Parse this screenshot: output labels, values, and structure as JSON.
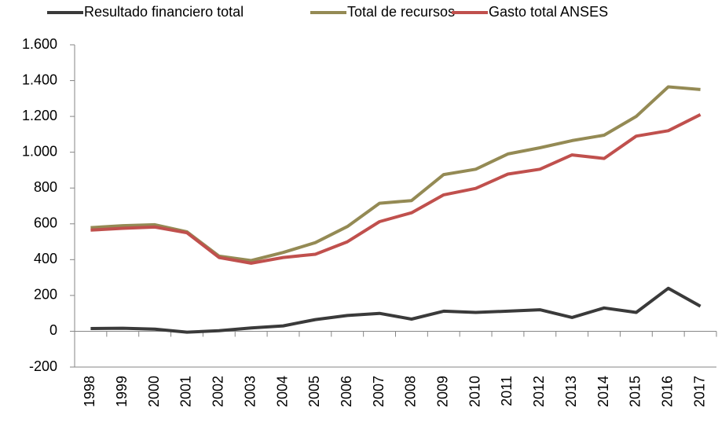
{
  "chart_data": {
    "type": "line",
    "categories": [
      "1998",
      "1999",
      "2000",
      "2001",
      "2002",
      "2003",
      "2004",
      "2005",
      "2006",
      "2007",
      "2008",
      "2009",
      "2010",
      "2011",
      "2012",
      "2013",
      "2014",
      "2015",
      "2016",
      "2017"
    ],
    "series": [
      {
        "name": "Resultado financiero total",
        "color": "#3a3a3a",
        "values": [
          15,
          17,
          12,
          -5,
          3,
          18,
          30,
          65,
          88,
          100,
          68,
          112,
          105,
          112,
          120,
          77,
          130,
          105,
          240,
          140
        ]
      },
      {
        "name": "Total de recursos",
        "color": "#948a54",
        "values": [
          579,
          590,
          595,
          555,
          420,
          395,
          440,
          495,
          585,
          715,
          730,
          875,
          905,
          990,
          1025,
          1065,
          1095,
          1200,
          1365,
          1350
        ]
      },
      {
        "name": "Gasto total ANSES",
        "color": "#c0504d",
        "values": [
          565,
          575,
          582,
          550,
          412,
          380,
          412,
          430,
          500,
          612,
          662,
          762,
          798,
          878,
          905,
          985,
          965,
          1090,
          1120,
          1210
        ]
      }
    ],
    "ylim": [
      -200,
      1600
    ],
    "yticks": [
      -200,
      0,
      200,
      400,
      600,
      800,
      {
        "value": 1000,
        "label": "1.000"
      },
      {
        "value": 1200,
        "label": "1.200"
      },
      {
        "value": 1400,
        "label": "1.400"
      },
      {
        "value": 1600,
        "label": "1.600"
      }
    ],
    "legend": "top"
  }
}
